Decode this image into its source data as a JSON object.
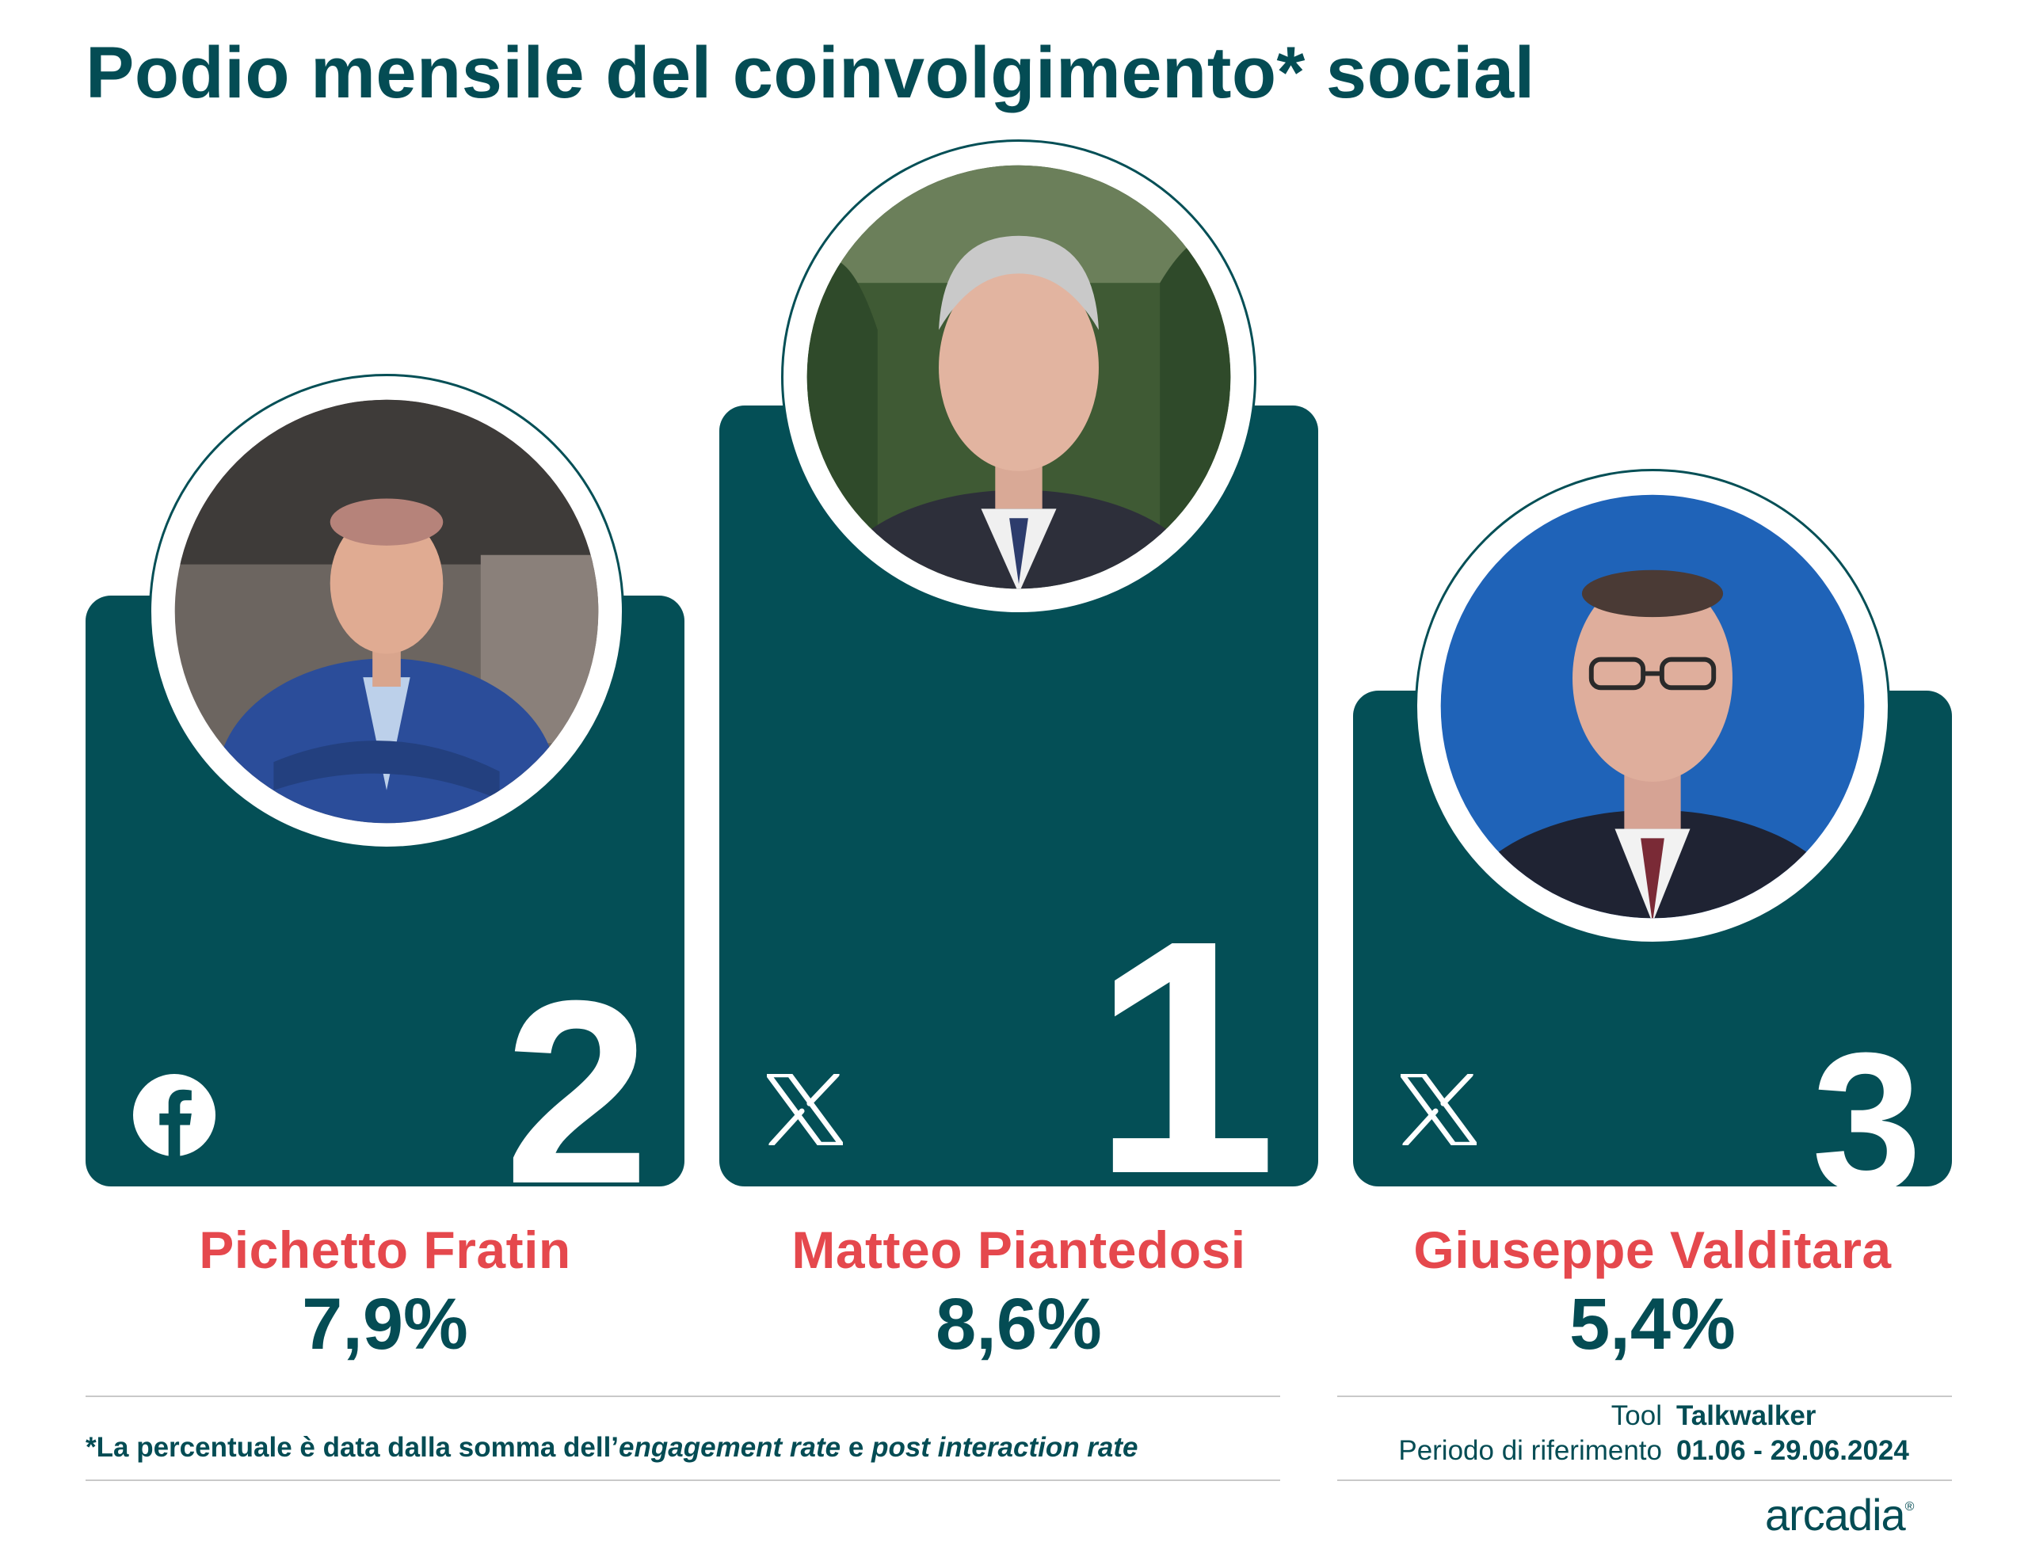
{
  "title": "Podio mensile del coinvolgimento* social",
  "podium": [
    {
      "rank": "2",
      "name": "Pichetto Fratin",
      "value": "7,9%",
      "platform_icon": "facebook-icon"
    },
    {
      "rank": "1",
      "name": "Matteo Piantedosi",
      "value": "8,6%",
      "platform_icon": "x-icon"
    },
    {
      "rank": "3",
      "name": "Giuseppe Valditara",
      "value": "5,4%",
      "platform_icon": "x-icon"
    }
  ],
  "footnote": {
    "prefix": "*La percentuale è data dalla somma dell’",
    "term1": "engagement rate",
    "middle": " e ",
    "term2": "post interaction rate"
  },
  "meta": {
    "tool_label": "Tool",
    "tool_value": "Talkwalker",
    "period_label": "Periodo di riferimento",
    "period_value": "01.06 - 29.06.2024"
  },
  "logo": {
    "text": "arcadia",
    "mark": "®"
  },
  "colors": {
    "brand_teal": "#044f56",
    "accent_red": "#e5484d"
  }
}
